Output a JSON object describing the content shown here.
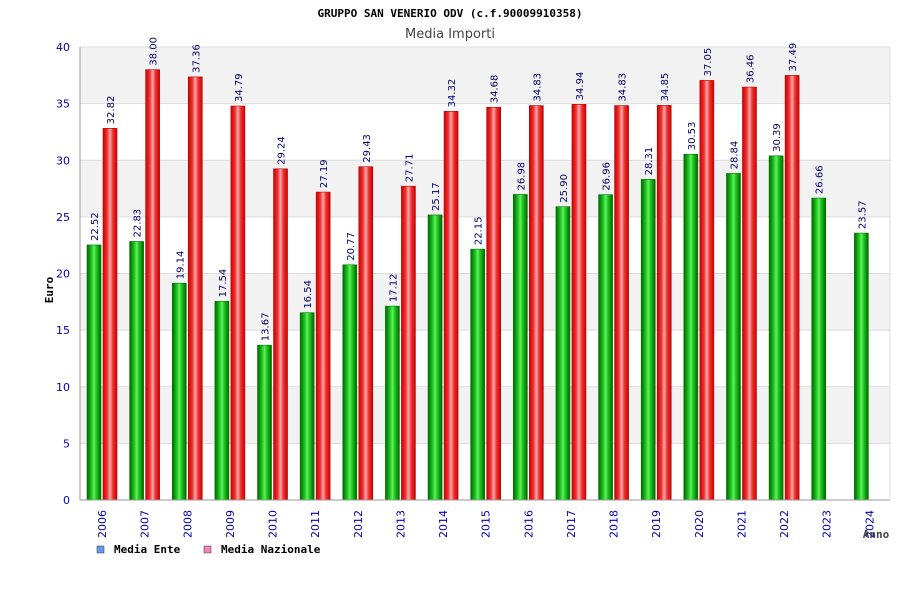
{
  "chart_data": {
    "type": "bar",
    "title": "GRUPPO SAN VENERIO ODV (c.f.90009910358)",
    "subtitle": "Media Importi",
    "xlabel": "Anno",
    "ylabel": "Euro",
    "ylim": [
      0,
      40
    ],
    "yticks": [
      0,
      5,
      10,
      15,
      20,
      25,
      30,
      35,
      40
    ],
    "grid": true,
    "legend_position": "bottom-left",
    "categories": [
      "2006",
      "2007",
      "2008",
      "2009",
      "2010",
      "2011",
      "2012",
      "2013",
      "2014",
      "2015",
      "2016",
      "2017",
      "2018",
      "2019",
      "2020",
      "2021",
      "2022",
      "2023",
      "2024"
    ],
    "series": [
      {
        "name": "Media Ente",
        "color": "#00aa00",
        "legend_color": "#6699ee",
        "values": [
          22.52,
          22.83,
          19.14,
          17.54,
          13.67,
          16.54,
          20.77,
          17.12,
          25.17,
          22.15,
          26.98,
          25.9,
          26.96,
          28.31,
          30.53,
          28.84,
          30.39,
          26.66,
          23.57
        ],
        "labels": [
          "22.52",
          "22.83",
          "19.14",
          "17.54",
          "13.67",
          "16.54",
          "20.77",
          "17.12",
          "25.17",
          "22.15",
          "26.98",
          "25.90",
          "26.96",
          "28.31",
          "30.53",
          "28.84",
          "30.39",
          "26.66",
          "23.57"
        ]
      },
      {
        "name": "Media Nazionale",
        "color": "#ee2222",
        "legend_color": "#ee88bb",
        "values": [
          32.82,
          38.0,
          37.36,
          34.79,
          29.24,
          27.19,
          29.43,
          27.71,
          34.32,
          34.68,
          34.83,
          34.94,
          34.83,
          34.85,
          37.05,
          36.46,
          37.49,
          null,
          null
        ],
        "labels": [
          "32.82",
          "38.00",
          "37.36",
          "34.79",
          "29.24",
          "27.19",
          "29.43",
          "27.71",
          "34.32",
          "34.68",
          "34.83",
          "34.94",
          "34.83",
          "34.85",
          "37.05",
          "36.46",
          "37.49",
          null,
          null
        ]
      }
    ],
    "colors": {
      "axis": "#0000aa",
      "band": "#f2f2f2",
      "label": "#000066",
      "text": "#000000",
      "subtitle": "#444444"
    }
  }
}
